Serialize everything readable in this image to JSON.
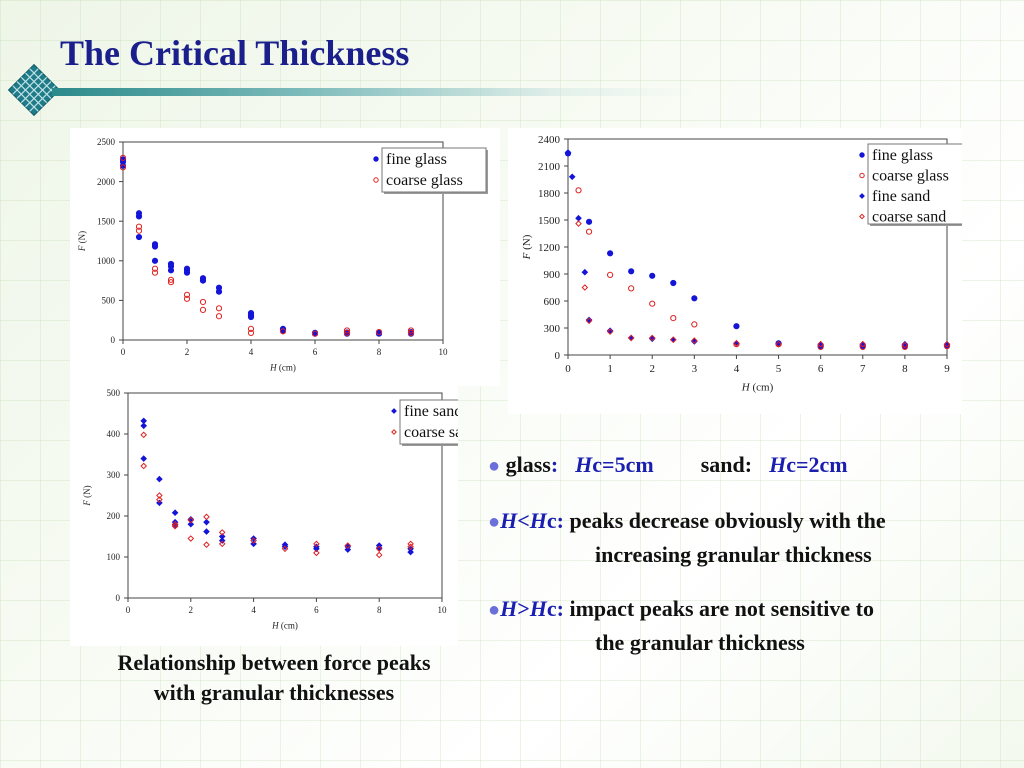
{
  "slide": {
    "title": "The Critical Thickness",
    "caption_line1": "Relationship between force peaks",
    "caption_line2": "with granular thicknesses",
    "bullet1": {
      "glass_label": "glass",
      "colon1": ":",
      "h1": "H",
      "h1_value": "c=5cm",
      "sand_label": "sand",
      "colon2": ":",
      "h2": "H",
      "h2_value": "c=2cm"
    },
    "bullet2": {
      "cond_h": "H",
      "cond_rel": "<",
      "cond_hc": "H",
      "cond_c": "c:",
      "line1": " peaks decrease obviously with the",
      "line2": "increasing granular thickness"
    },
    "bullet3": {
      "cond_h": "H",
      "cond_rel": ">",
      "cond_hc": "H",
      "cond_c": "c:",
      "line1": " impact peaks are not sensitive to",
      "line2": "the granular thickness"
    },
    "colors": {
      "title": "#1a1f8c",
      "blue": "#1a1fb0",
      "fine": "#1515d8",
      "coarse": "#e02020",
      "bullet": "#6a6fd9"
    },
    "bullet_icon": "filled-circle-bullet"
  },
  "chart_data": [
    {
      "type": "scatter",
      "title": "",
      "xlabel": "H",
      "xunit": "(cm)",
      "ylabel": "F",
      "yunit": "(N)",
      "xlim": [
        0,
        10
      ],
      "ylim": [
        0,
        2500
      ],
      "xticks": [
        "0",
        "2",
        "4",
        "6",
        "8",
        "10"
      ],
      "yticks": [
        "0",
        "500",
        "1000",
        "1500",
        "2000",
        "2500"
      ],
      "legend_position": "top-right",
      "series": [
        {
          "name": "fine glass",
          "marker": "filled-circle",
          "x": [
            0,
            0,
            0,
            0.5,
            0.5,
            0.5,
            1,
            1,
            1,
            1.5,
            1.5,
            1.5,
            2,
            2,
            2,
            2.5,
            2.5,
            3,
            3,
            4,
            4,
            4,
            5,
            5,
            6,
            6,
            7,
            7,
            8,
            8,
            9,
            9
          ],
          "y": [
            2200,
            2250,
            2280,
            1300,
            1560,
            1600,
            1000,
            1180,
            1210,
            880,
            930,
            960,
            850,
            880,
            900,
            750,
            780,
            610,
            660,
            290,
            310,
            340,
            120,
            140,
            80,
            90,
            80,
            95,
            80,
            95,
            80,
            100
          ]
        },
        {
          "name": "coarse glass",
          "marker": "open-circle",
          "x": [
            0,
            0,
            0.5,
            0.5,
            1,
            1,
            1.5,
            1.5,
            2,
            2,
            2.5,
            2.5,
            3,
            3,
            4,
            4,
            5,
            6,
            7,
            7,
            8,
            9,
            9
          ],
          "y": [
            2180,
            2300,
            1380,
            1430,
            850,
            900,
            730,
            760,
            520,
            570,
            380,
            480,
            300,
            400,
            90,
            140,
            110,
            80,
            90,
            120,
            100,
            90,
            120
          ]
        }
      ]
    },
    {
      "type": "scatter",
      "title": "",
      "xlabel": "H",
      "xunit": "(cm)",
      "ylabel": "F",
      "yunit": "(N)",
      "xlim": [
        0,
        9
      ],
      "ylim": [
        0,
        2400
      ],
      "xticks": [
        "0",
        "1",
        "2",
        "3",
        "4",
        "5",
        "6",
        "7",
        "8",
        "9"
      ],
      "yticks": [
        "0",
        "300",
        "600",
        "900",
        "1200",
        "1500",
        "1800",
        "2100",
        "2400"
      ],
      "legend_position": "top-right",
      "series": [
        {
          "name": "fine glass",
          "marker": "filled-circle",
          "x": [
            0,
            0.5,
            1,
            1.5,
            2,
            2.5,
            3,
            4,
            5,
            6,
            7,
            8,
            9
          ],
          "y": [
            2240,
            1480,
            1130,
            930,
            880,
            800,
            630,
            320,
            130,
            100,
            100,
            100,
            100
          ]
        },
        {
          "name": "coarse glass",
          "marker": "open-circle",
          "x": [
            0.25,
            0.5,
            1,
            1.5,
            2,
            2.5,
            3,
            4,
            5,
            6,
            7,
            8,
            9
          ],
          "y": [
            1830,
            1370,
            890,
            740,
            570,
            410,
            340,
            120,
            120,
            90,
            90,
            90,
            100
          ]
        },
        {
          "name": "fine sand",
          "marker": "filled-diamond",
          "x": [
            0,
            0.1,
            0.25,
            0.4,
            0.5,
            1,
            1.5,
            2,
            2.5,
            3,
            4,
            5,
            6,
            7,
            8,
            9
          ],
          "y": [
            2250,
            1980,
            1520,
            920,
            390,
            270,
            190,
            180,
            170,
            150,
            130,
            130,
            120,
            120,
            120,
            120
          ]
        },
        {
          "name": "coarse sand",
          "marker": "open-diamond",
          "x": [
            0.25,
            0.4,
            0.5,
            1,
            1.5,
            2,
            2.5,
            3,
            4,
            5,
            6,
            7,
            8,
            9
          ],
          "y": [
            1460,
            750,
            380,
            260,
            190,
            190,
            170,
            160,
            130,
            120,
            120,
            120,
            110,
            120
          ]
        }
      ]
    },
    {
      "type": "scatter",
      "title": "",
      "xlabel": "H",
      "xunit": "(cm)",
      "ylabel": "F",
      "yunit": "(N)",
      "xlim": [
        0,
        10
      ],
      "ylim": [
        0,
        500
      ],
      "xticks": [
        "0",
        "2",
        "4",
        "6",
        "8",
        "10"
      ],
      "yticks": [
        "0",
        "100",
        "200",
        "300",
        "400",
        "500"
      ],
      "legend_position": "top-right",
      "series": [
        {
          "name": "fine sand",
          "marker": "filled-diamond",
          "x": [
            0.5,
            0.5,
            0.5,
            1,
            1,
            1.5,
            1.5,
            1.5,
            2,
            2,
            2.5,
            2.5,
            3,
            3,
            4,
            4,
            5,
            5,
            6,
            6,
            7,
            7,
            8,
            8,
            9,
            9
          ],
          "y": [
            432,
            420,
            340,
            290,
            232,
            208,
            185,
            178,
            192,
            180,
            185,
            162,
            150,
            140,
            145,
            132,
            130,
            125,
            125,
            120,
            125,
            118,
            128,
            122,
            120,
            112
          ]
        },
        {
          "name": "coarse sand",
          "marker": "open-diamond",
          "x": [
            0.5,
            0.5,
            1,
            1,
            1.5,
            1.5,
            2,
            2,
            2.5,
            2.5,
            3,
            3,
            4,
            5,
            6,
            6,
            7,
            8,
            8,
            9,
            9
          ],
          "y": [
            398,
            322,
            250,
            240,
            180,
            175,
            145,
            190,
            198,
            130,
            160,
            132,
            140,
            120,
            132,
            110,
            128,
            120,
            105,
            132,
            125
          ]
        }
      ]
    }
  ]
}
